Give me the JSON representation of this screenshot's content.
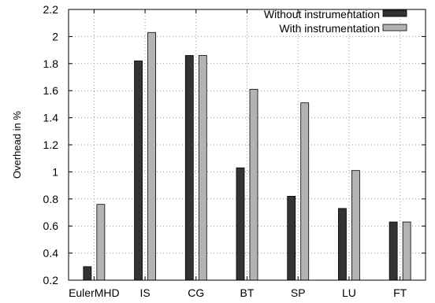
{
  "chart_data": {
    "type": "bar",
    "title": "",
    "xlabel": "",
    "ylabel": "Overhead in %",
    "categories": [
      "EulerMHD",
      "IS",
      "CG",
      "BT",
      "SP",
      "LU",
      "FT"
    ],
    "series": [
      {
        "name": "Without instrumentation",
        "color": "#333333",
        "values": [
          0.3,
          1.82,
          1.86,
          1.03,
          0.82,
          0.73,
          0.63
        ]
      },
      {
        "name": "With instrumentation",
        "color": "#b3b3b3",
        "values": [
          0.76,
          2.03,
          1.86,
          1.61,
          1.51,
          1.01,
          0.63
        ]
      }
    ],
    "ylim": [
      0.2,
      2.2
    ],
    "yticks": [
      "0.2",
      "0.4",
      "0.6",
      "0.8",
      "1",
      "1.2",
      "1.4",
      "1.6",
      "1.8",
      "2",
      "2.2"
    ],
    "grid": true,
    "grid_style": "dotted",
    "legend_position": "top-right"
  }
}
